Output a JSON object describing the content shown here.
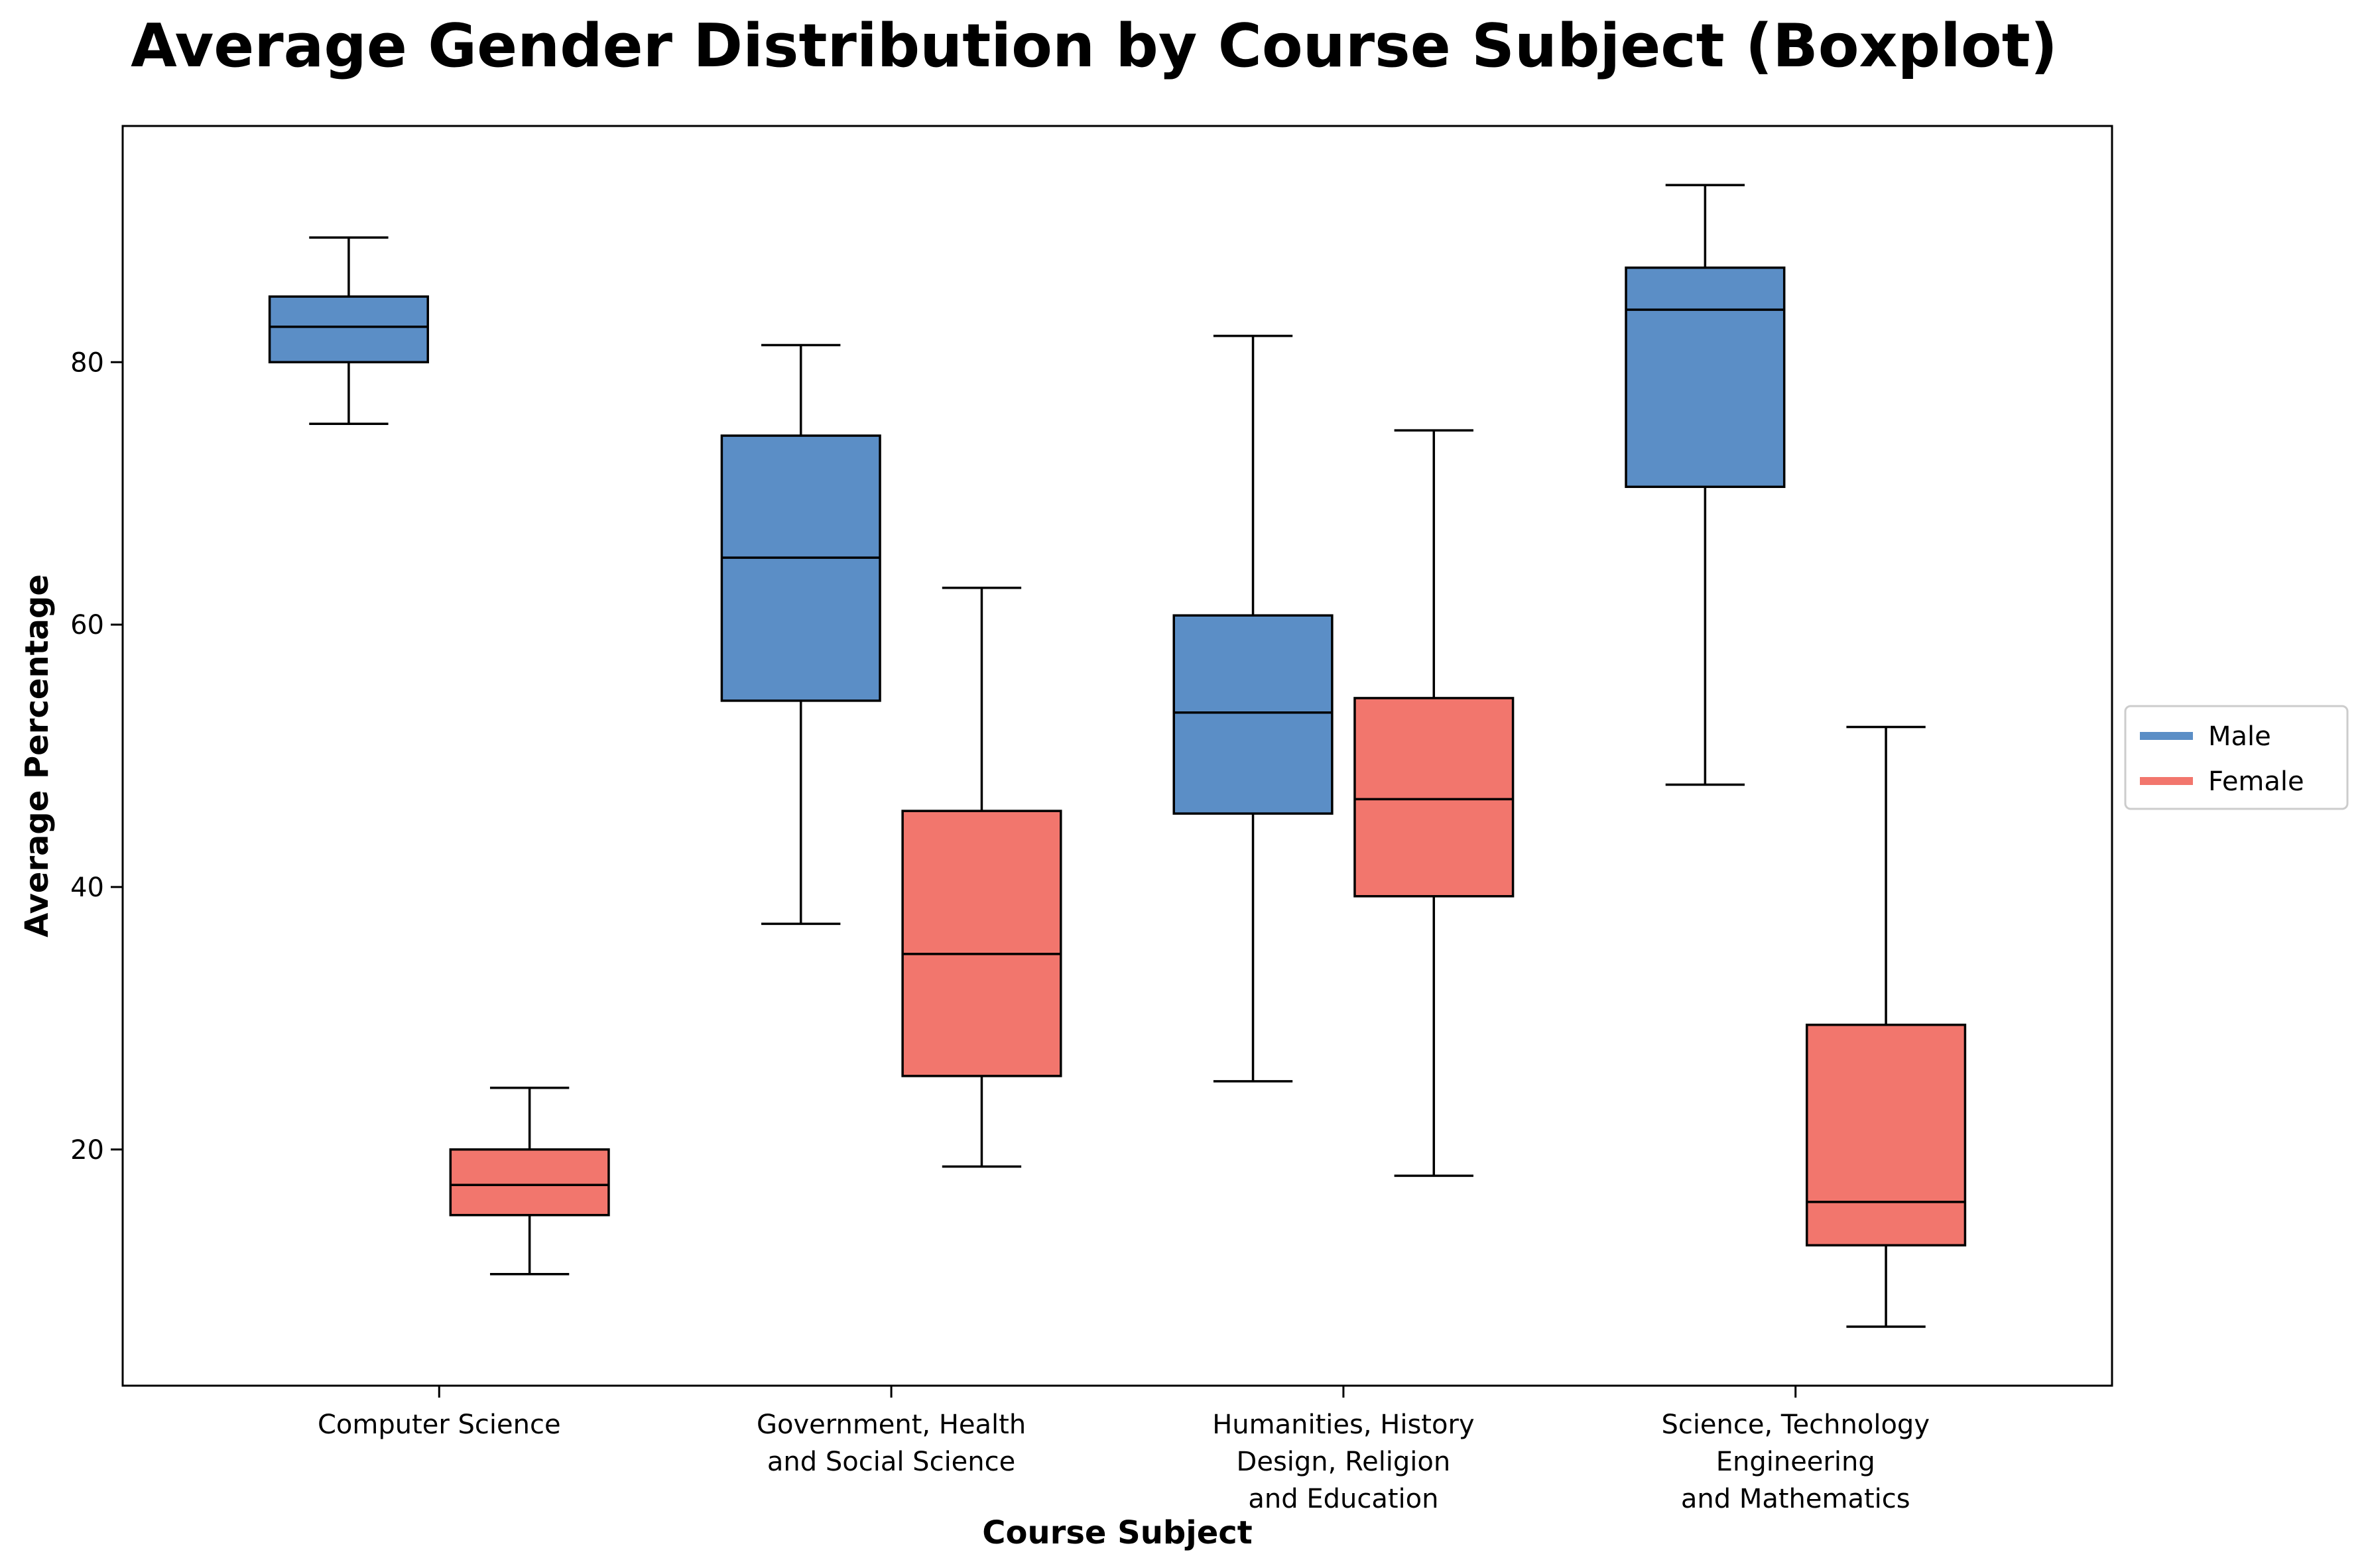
{
  "chart_data": {
    "type": "boxplot",
    "title": "Average Gender Distribution by Course Subject (Boxplot)",
    "xlabel": "Course Subject",
    "ylabel": "Average Percentage",
    "ylim": [
      2,
      98
    ],
    "yticks": [
      20,
      40,
      60,
      80
    ],
    "grid": false,
    "legend_position": "right",
    "categories": [
      [
        "Computer Science"
      ],
      [
        "Government, Health",
        "and Social Science"
      ],
      [
        "Humanities, History",
        "Design, Religion",
        "and Education"
      ],
      [
        "Science, Technology",
        "Engineering",
        "and Mathematics"
      ]
    ],
    "series": [
      {
        "name": "Male",
        "color": "#5B8EC6",
        "boxes": [
          {
            "whisker_low": 75.3,
            "q1": 80.0,
            "median": 82.7,
            "q3": 85.0,
            "whisker_high": 89.5
          },
          {
            "whisker_low": 37.2,
            "q1": 54.2,
            "median": 65.1,
            "q3": 74.4,
            "whisker_high": 81.3
          },
          {
            "whisker_low": 25.2,
            "q1": 45.6,
            "median": 53.3,
            "q3": 60.7,
            "whisker_high": 82.0
          },
          {
            "whisker_low": 47.8,
            "q1": 70.5,
            "median": 84.0,
            "q3": 87.2,
            "whisker_high": 93.5
          }
        ]
      },
      {
        "name": "Female",
        "color": "#F2766D",
        "boxes": [
          {
            "whisker_low": 10.5,
            "q1": 15.0,
            "median": 17.3,
            "q3": 20.0,
            "whisker_high": 24.7
          },
          {
            "whisker_low": 18.7,
            "q1": 25.6,
            "median": 34.9,
            "q3": 45.8,
            "whisker_high": 62.8
          },
          {
            "whisker_low": 18.0,
            "q1": 39.3,
            "median": 46.7,
            "q3": 54.4,
            "whisker_high": 74.8
          },
          {
            "whisker_low": 6.5,
            "q1": 12.7,
            "median": 16.0,
            "q3": 29.5,
            "whisker_high": 52.2
          }
        ]
      }
    ]
  }
}
